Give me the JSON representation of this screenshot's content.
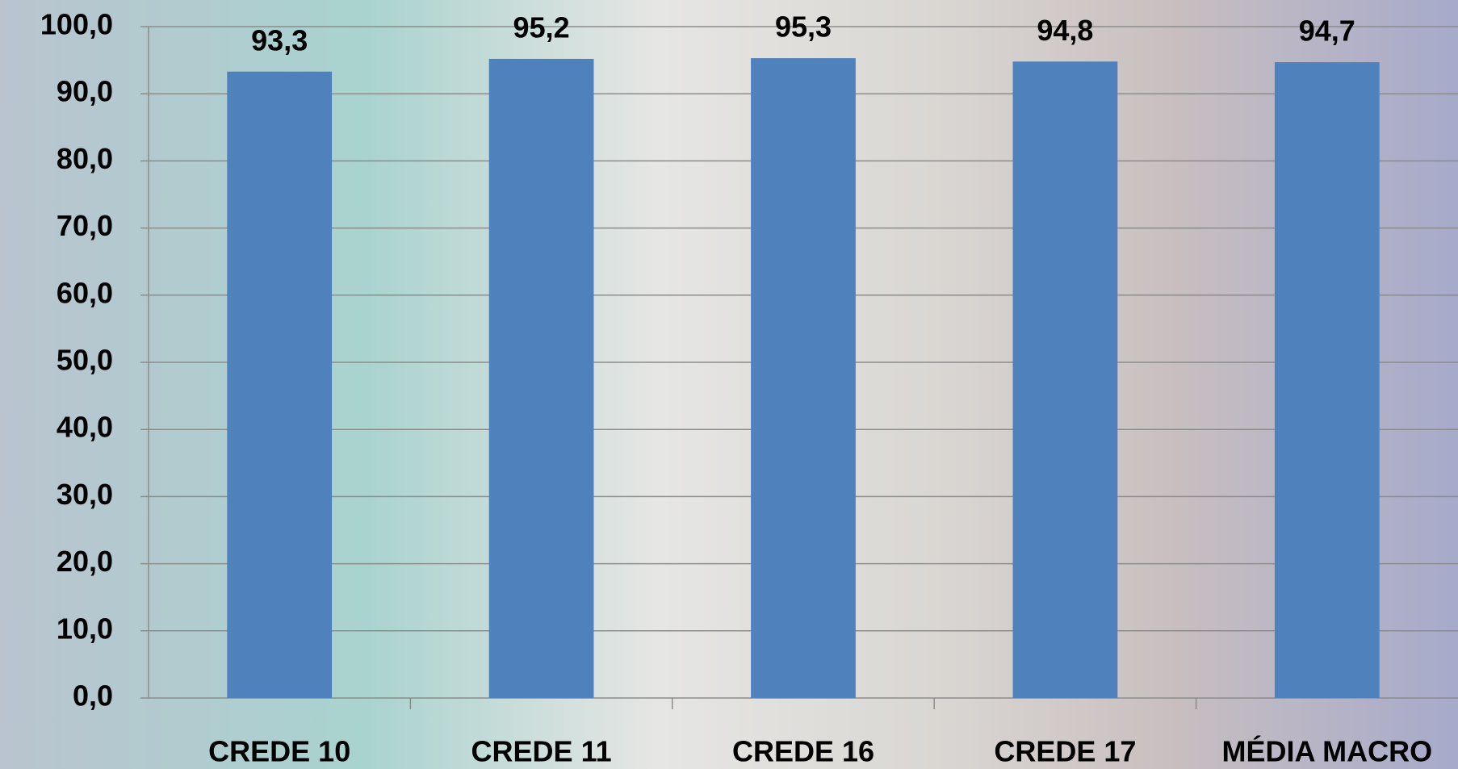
{
  "chart_data": {
    "type": "bar",
    "categories": [
      "CREDE 10",
      "CREDE 11",
      "CREDE 16",
      "CREDE 17",
      "MÉDIA MACRO"
    ],
    "values": [
      93.3,
      95.2,
      95.3,
      94.8,
      94.7
    ],
    "value_labels": [
      "93,3",
      "95,2",
      "95,3",
      "94,8",
      "94,7"
    ],
    "color": "#4f81bd",
    "ylim": [
      0,
      100
    ],
    "yticks": [
      {
        "value": 0,
        "label": "0,0"
      },
      {
        "value": 10,
        "label": "10,0"
      },
      {
        "value": 20,
        "label": "20,0"
      },
      {
        "value": 30,
        "label": "30,0"
      },
      {
        "value": 40,
        "label": "40,0"
      },
      {
        "value": 50,
        "label": "50,0"
      },
      {
        "value": 60,
        "label": "60,0"
      },
      {
        "value": 70,
        "label": "70,0"
      },
      {
        "value": 80,
        "label": "80,0"
      },
      {
        "value": 90,
        "label": "90,0"
      },
      {
        "value": 100,
        "label": "100,0"
      }
    ],
    "grid": true
  }
}
